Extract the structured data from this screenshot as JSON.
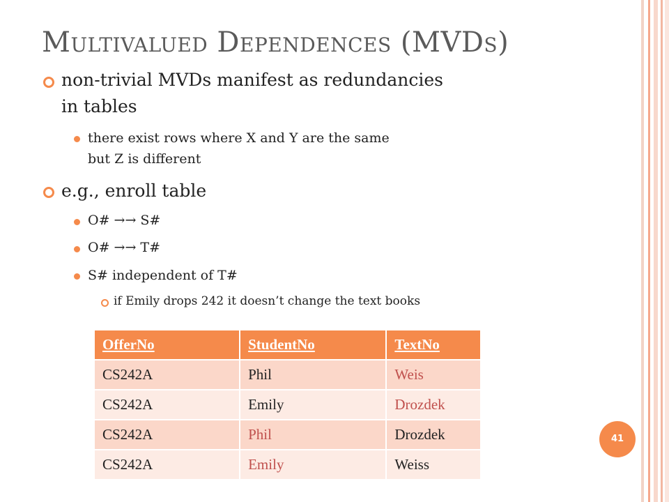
{
  "slide": {
    "title": {
      "M": "M",
      "ultivalued": "ULTIVALUED",
      "D": "D",
      "ependences": "EPENDENCES",
      "open": "(MVD",
      "s": "S",
      "close": ")"
    },
    "bullets": {
      "b1": "non-trivial MVDs manifest as redundancies",
      "b1_line2": "in tables",
      "b1_sub": "there exist rows where X and Y are the same",
      "b1_sub_line2": "but Z is different",
      "b2": "e.g., enroll table",
      "b2_sub1": "O# →→ S#",
      "b2_sub2": "O# →→ T#",
      "b2_sub3": "S# independent of T#",
      "b2_sub3_sub": "if Emily drops 242 it doesn’t change the text books"
    },
    "table": {
      "headers": [
        "OfferNo",
        "StudentNo",
        "TextNo"
      ],
      "rows": [
        [
          "CS242A",
          "Phil",
          "Weis"
        ],
        [
          "CS242A",
          "Emily",
          "Drozdek"
        ],
        [
          "CS242A",
          "Phil",
          "Drozdek"
        ],
        [
          "CS242A",
          "Emily",
          "Weiss"
        ]
      ]
    },
    "page_number": "41",
    "colors": {
      "accent": "#f58a4b",
      "highlight_text": "#c0504d",
      "row_dark": "#fbd7c9",
      "row_light": "#fdebe4"
    }
  }
}
